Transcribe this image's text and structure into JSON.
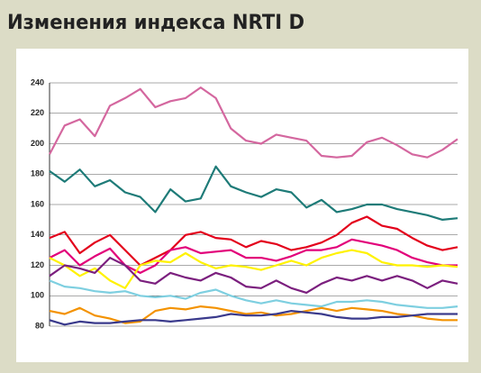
{
  "chart_data": {
    "type": "line",
    "title": "Изменения индекса NRTI D",
    "x": [
      0,
      1,
      2,
      3,
      4,
      5,
      6,
      7,
      8,
      9,
      10,
      11,
      12,
      13,
      14,
      15,
      16,
      17,
      18,
      19,
      20,
      21,
      22,
      23,
      24,
      25,
      26,
      27
    ],
    "xlim": [
      0,
      27
    ],
    "ylim": [
      80,
      240
    ],
    "yticks": [
      80,
      100,
      120,
      140,
      160,
      180,
      200,
      220,
      240
    ],
    "grid": true,
    "series": [
      {
        "color": "#d4679f",
        "values": [
          193,
          212,
          216,
          205,
          225,
          230,
          236,
          224,
          228,
          230,
          237,
          230,
          210,
          202,
          200,
          206,
          204,
          202,
          192,
          191,
          192,
          201,
          204,
          199,
          193,
          191,
          196,
          203
        ]
      },
      {
        "color": "#1e7b78",
        "values": [
          182,
          175,
          183,
          172,
          176,
          168,
          165,
          155,
          170,
          162,
          164,
          185,
          172,
          168,
          165,
          170,
          168,
          158,
          163,
          155,
          157,
          160,
          160,
          157,
          155,
          153,
          150,
          151
        ]
      },
      {
        "color": "#e3001b",
        "values": [
          138,
          142,
          128,
          135,
          140,
          130,
          120,
          125,
          130,
          140,
          142,
          138,
          137,
          132,
          136,
          134,
          130,
          132,
          135,
          140,
          148,
          152,
          146,
          144,
          138,
          133,
          130,
          132
        ]
      },
      {
        "color": "#e2007a",
        "values": [
          125,
          130,
          120,
          126,
          131,
          120,
          115,
          120,
          130,
          132,
          128,
          129,
          130,
          125,
          125,
          123,
          126,
          130,
          130,
          132,
          137,
          135,
          133,
          130,
          125,
          122,
          120,
          120
        ]
      },
      {
        "color": "#fff200",
        "values": [
          125,
          120,
          113,
          118,
          110,
          105,
          120,
          123,
          122,
          128,
          122,
          118,
          120,
          119,
          117,
          120,
          123,
          120,
          125,
          128,
          130,
          128,
          122,
          120,
          120,
          119,
          120,
          119
        ]
      },
      {
        "color": "#7b1f7e",
        "values": [
          113,
          120,
          118,
          115,
          125,
          120,
          110,
          108,
          115,
          112,
          110,
          115,
          112,
          106,
          105,
          110,
          105,
          102,
          108,
          112,
          110,
          113,
          110,
          113,
          110,
          105,
          110,
          108
        ]
      },
      {
        "color": "#7ecfe0",
        "values": [
          110,
          106,
          105,
          103,
          102,
          103,
          100,
          99,
          100,
          98,
          102,
          104,
          100,
          97,
          95,
          97,
          95,
          94,
          93,
          96,
          96,
          97,
          96,
          94,
          93,
          92,
          92,
          93
        ]
      },
      {
        "color": "#f39200",
        "values": [
          90,
          88,
          92,
          87,
          85,
          82,
          83,
          90,
          92,
          91,
          93,
          92,
          90,
          88,
          89,
          87,
          88,
          90,
          92,
          90,
          92,
          91,
          90,
          88,
          87,
          85,
          84,
          84
        ]
      },
      {
        "color": "#3a3a8c",
        "values": [
          84,
          81,
          83,
          82,
          82,
          83,
          84,
          84,
          83,
          84,
          85,
          86,
          88,
          87,
          87,
          88,
          90,
          89,
          88,
          86,
          85,
          85,
          86,
          86,
          87,
          88,
          88,
          88
        ]
      }
    ]
  }
}
